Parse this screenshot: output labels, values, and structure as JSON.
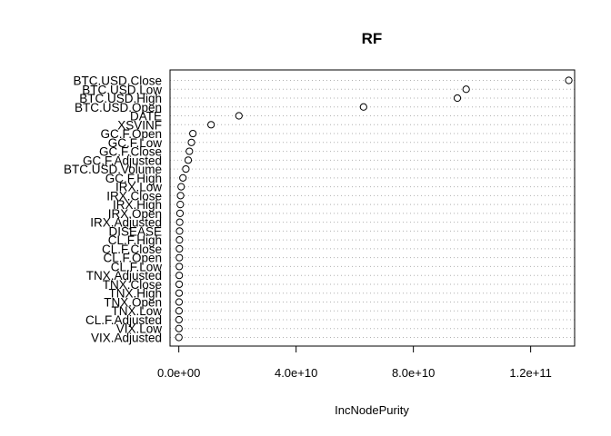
{
  "chart_data": {
    "type": "scatter",
    "title": "RF",
    "xlabel": "IncNodePurity",
    "ylabel": "",
    "xlim": [
      -3000000000,
      135000000000
    ],
    "grid": "dotted-horizontal",
    "x_ticks": [
      {
        "value": 0,
        "label": "0.0e+00"
      },
      {
        "value": 40000000000,
        "label": "4.0e+10"
      },
      {
        "value": 80000000000,
        "label": "8.0e+10"
      },
      {
        "value": 120000000000,
        "label": "1.2e+11"
      }
    ],
    "categories": [
      "BTC.USD.Close",
      "BTC.USD.Low",
      "BTC.USD.High",
      "BTC.USD.Open",
      "DATE",
      "XSVINF",
      "GC.F.Open",
      "GC.F.Low",
      "GC.F.Close",
      "GC.F.Adjusted",
      "BTC.USD.Volume",
      "GC.F.High",
      "IRX.Low",
      "IRX.Close",
      "IRX.High",
      "IRX.Open",
      "IRX.Adjusted",
      "DISEASE",
      "CL.F.High",
      "CL.F.Close",
      "CL.F.Open",
      "CL.F.Low",
      "TNX.Adjusted",
      "TNX.Close",
      "TNX.High",
      "TNX.Open",
      "TNX.Low",
      "CL.F.Adjusted",
      "VIX.Low",
      "VIX.Adjusted"
    ],
    "values": [
      133000000000,
      98000000000,
      95000000000,
      63000000000,
      20500000000,
      11000000000,
      4800000000,
      4300000000,
      3600000000,
      3200000000,
      2400000000,
      1400000000,
      800000000,
      600000000,
      500000000,
      400000000,
      300000000,
      250000000,
      220000000,
      200000000,
      180000000,
      160000000,
      140000000,
      120000000,
      100000000,
      90000000,
      80000000,
      60000000,
      40000000,
      20000000
    ]
  }
}
